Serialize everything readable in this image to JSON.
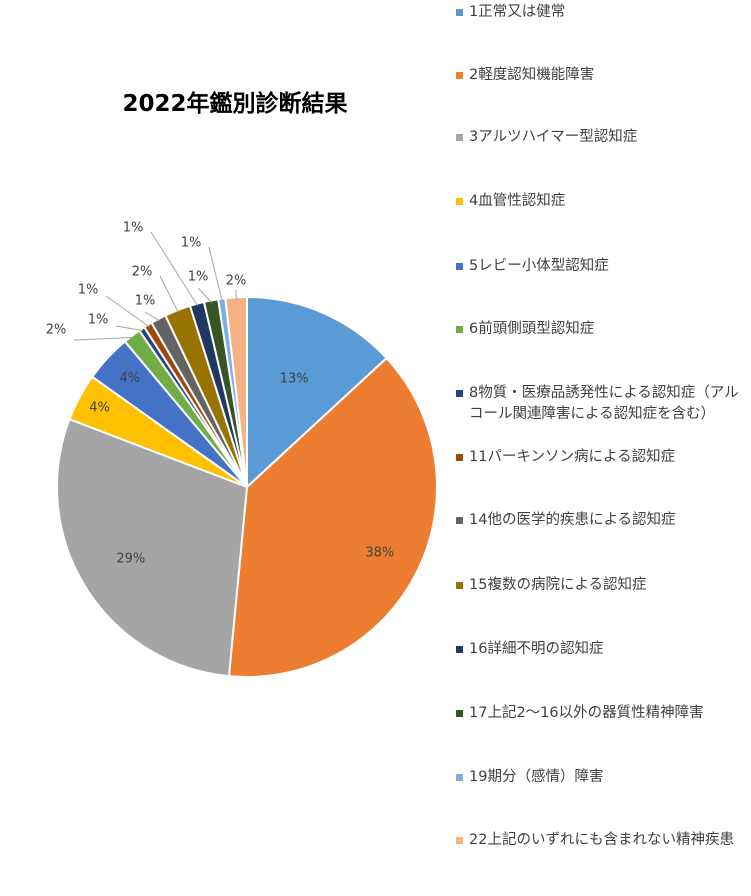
{
  "chart_data": {
    "type": "pie",
    "title": "2022年鑑別診断結果",
    "legend_position": "right",
    "slices": [
      {
        "name": "1正常又は健常",
        "value": 13,
        "label": "13%",
        "color": "#5b9bd5"
      },
      {
        "name": "2軽度認知機能障害",
        "value": 38,
        "label": "38%",
        "color": "#ed7d31"
      },
      {
        "name": "3アルツハイマー型認知症",
        "value": 29,
        "label": "29%",
        "color": "#a5a5a5"
      },
      {
        "name": "4血管性認知症",
        "value": 4,
        "label": "4%",
        "color": "#ffc000"
      },
      {
        "name": "5レビー小体型認知症",
        "value": 4,
        "label": "4%",
        "color": "#4472c4"
      },
      {
        "name": "6前頭側頭型認知症",
        "value": 1.5,
        "label": "2%",
        "color": "#70ad47"
      },
      {
        "name": "8物質・医療品誘発性による認知症（アルコール関連障害による認知症を含む）",
        "value": 0.5,
        "label": "1%",
        "color": "#264478"
      },
      {
        "name": "11パーキンソン病による認知症",
        "value": 0.7,
        "label": "1%",
        "color": "#9e480e"
      },
      {
        "name": "14他の医学的疾患による認知症",
        "value": 1.3,
        "label": "1%",
        "color": "#636363"
      },
      {
        "name": "15複数の病院による認知症",
        "value": 2.2,
        "label": "2%",
        "color": "#997300"
      },
      {
        "name": "16詳細不明の認知症",
        "value": 1.2,
        "label": "1%",
        "color": "#203864"
      },
      {
        "name": "17上記2～16以外の器質性精神障害",
        "value": 1.2,
        "label": "1%",
        "color": "#375623"
      },
      {
        "name": "19期分（感情）障害",
        "value": 0.6,
        "label": "1%",
        "color": "#7cafdd"
      },
      {
        "name": "22上記のいずれにも含まれない精神疾患",
        "value": 1.8,
        "label": "2%",
        "color": "#f4b183"
      }
    ]
  }
}
